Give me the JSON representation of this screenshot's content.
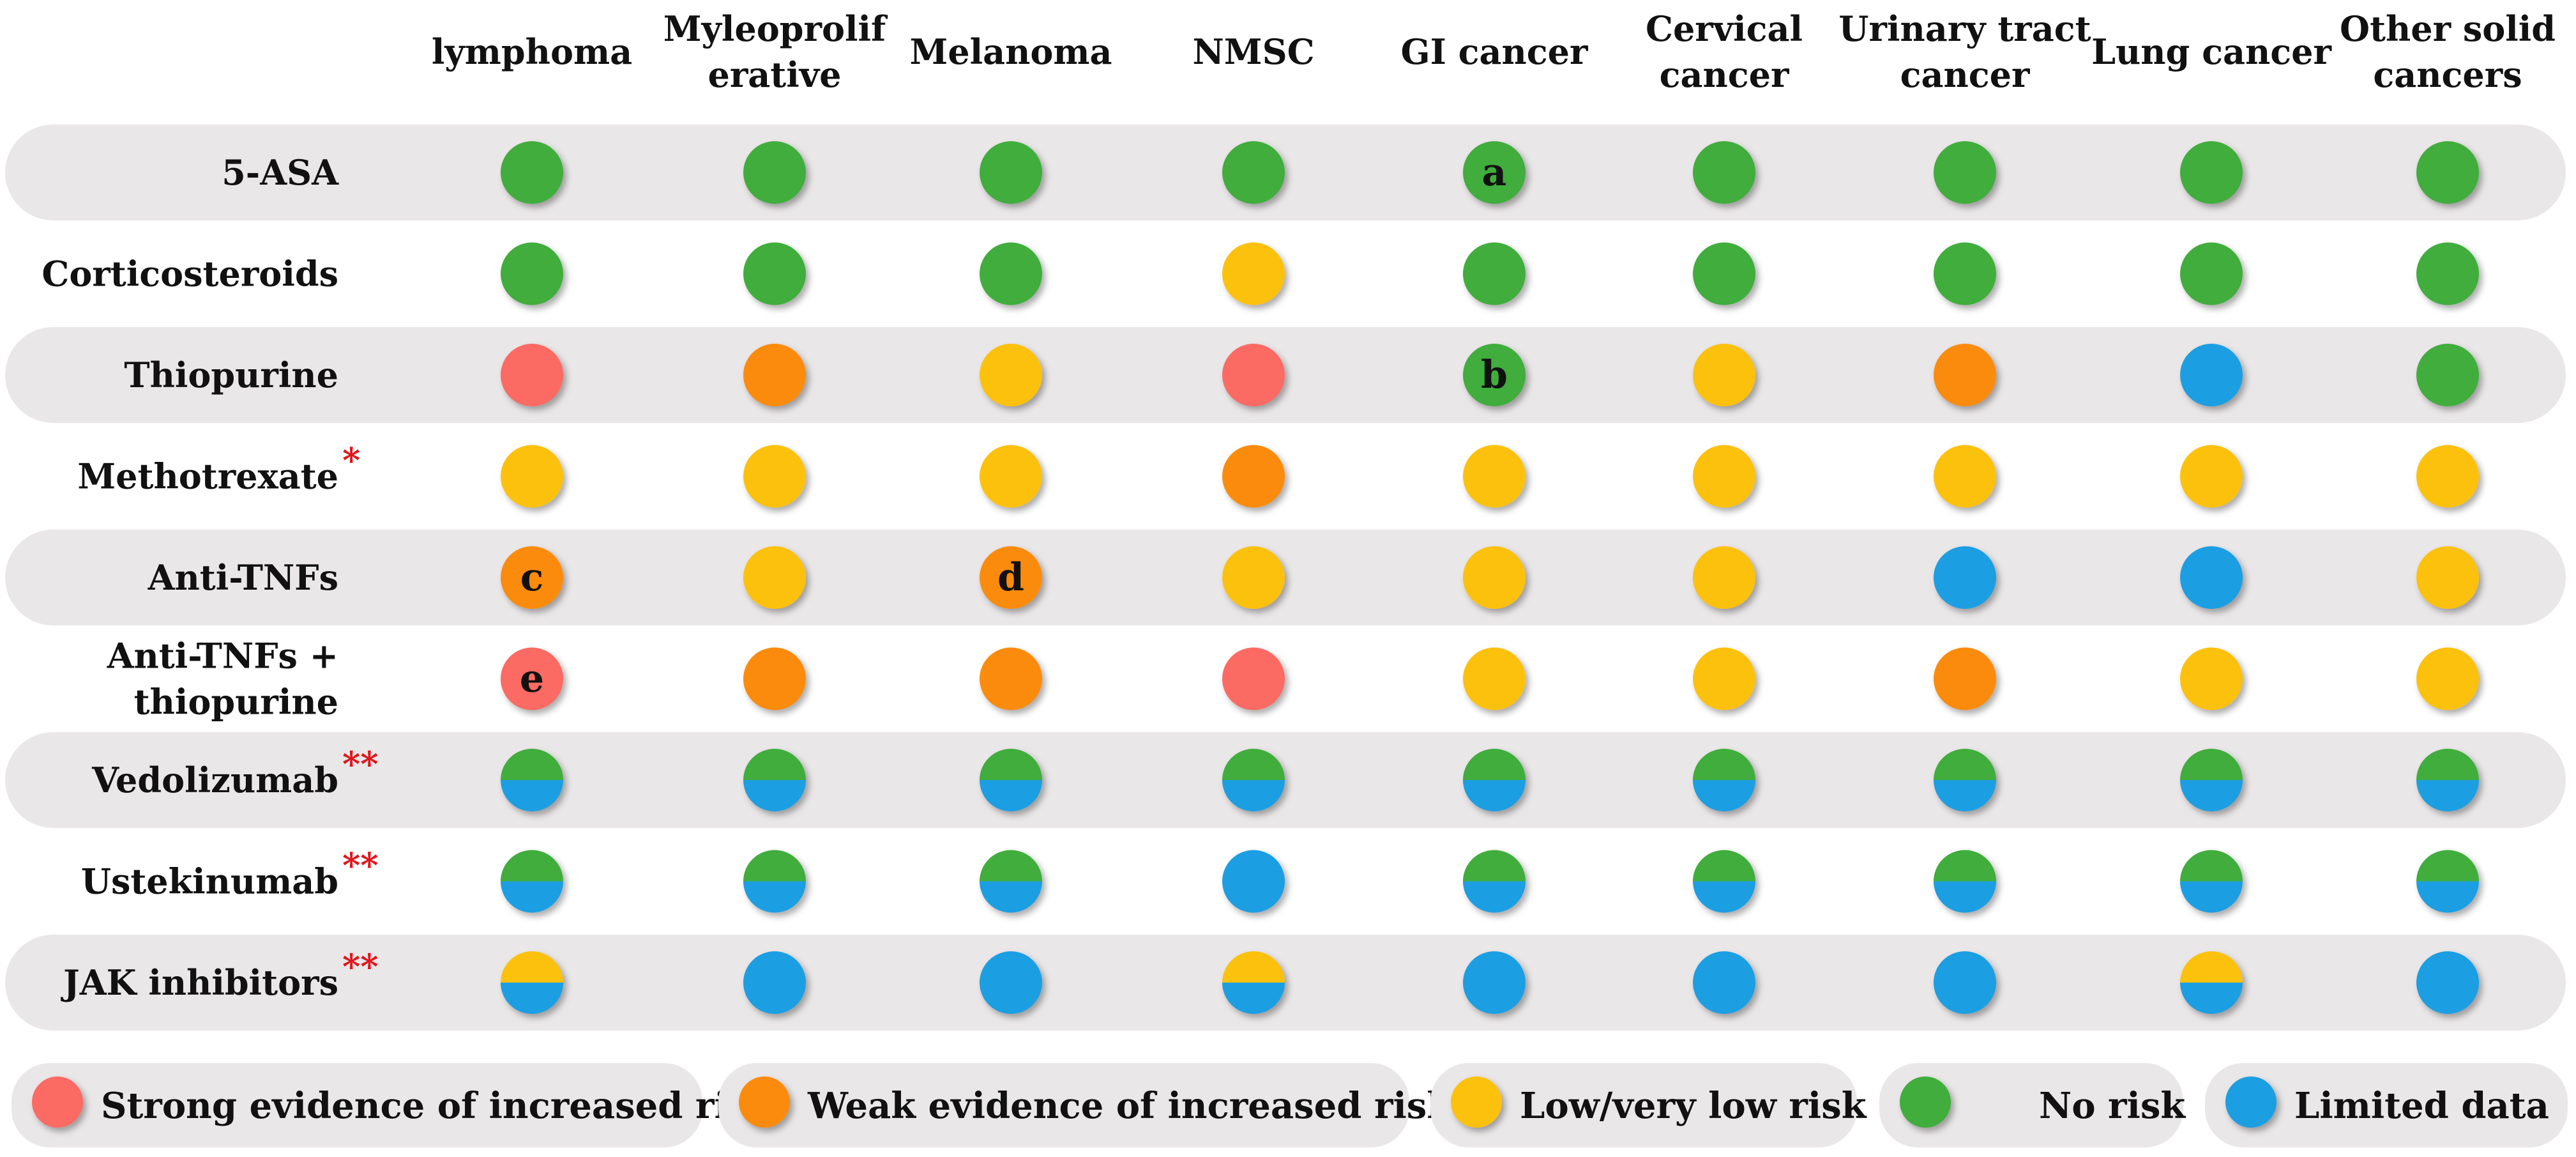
{
  "chart_data": {
    "type": "table",
    "title": "",
    "columns": [
      [
        "lymphoma"
      ],
      [
        "Myleoprolif",
        "erative"
      ],
      [
        "Melanoma"
      ],
      [
        "NMSC"
      ],
      [
        "GI cancer"
      ],
      [
        "Cervical",
        "cancer"
      ],
      [
        "Urinary tract",
        "cancer"
      ],
      [
        "Lung cancer"
      ],
      [
        "Other solid",
        "cancers"
      ]
    ],
    "rows": [
      {
        "label": [
          "5-ASA"
        ],
        "stars": "",
        "shaded": true,
        "cells": [
          "none",
          "none",
          "none",
          "none",
          "none",
          "none",
          "none",
          "none",
          "none"
        ],
        "notes": {
          "4": "a"
        }
      },
      {
        "label": [
          "Corticosteroids"
        ],
        "stars": "",
        "shaded": false,
        "cells": [
          "none",
          "none",
          "none",
          "low",
          "none",
          "none",
          "none",
          "none",
          "none"
        ],
        "notes": {}
      },
      {
        "label": [
          "Thiopurine"
        ],
        "stars": "",
        "shaded": true,
        "cells": [
          "strong",
          "weak",
          "low",
          "strong",
          "none",
          "low",
          "weak",
          "limited",
          "none"
        ],
        "notes": {
          "4": "b"
        }
      },
      {
        "label": [
          "Methotrexate"
        ],
        "stars": "*",
        "shaded": false,
        "cells": [
          "low",
          "low",
          "low",
          "weak",
          "low",
          "low",
          "low",
          "low",
          "low"
        ],
        "notes": {}
      },
      {
        "label": [
          "Anti-TNFs"
        ],
        "stars": "",
        "shaded": true,
        "cells": [
          "weak",
          "low",
          "weak",
          "low",
          "low",
          "low",
          "limited",
          "limited",
          "low"
        ],
        "notes": {
          "0": "c",
          "2": "d"
        }
      },
      {
        "label": [
          "Anti-TNFs +",
          "thiopurine"
        ],
        "stars": "",
        "shaded": false,
        "cells": [
          "strong",
          "weak",
          "weak",
          "strong",
          "low",
          "low",
          "weak",
          "low",
          "low"
        ],
        "notes": {
          "0": "e"
        }
      },
      {
        "label": [
          "Vedolizumab"
        ],
        "stars": "**",
        "shaded": true,
        "cells": [
          "none/limited",
          "none/limited",
          "none/limited",
          "none/limited",
          "none/limited",
          "none/limited",
          "none/limited",
          "none/limited",
          "none/limited"
        ],
        "notes": {}
      },
      {
        "label": [
          "Ustekinumab"
        ],
        "stars": "**",
        "shaded": false,
        "cells": [
          "none/limited",
          "none/limited",
          "none/limited",
          "limited",
          "none/limited",
          "none/limited",
          "none/limited",
          "none/limited",
          "none/limited"
        ],
        "notes": {}
      },
      {
        "label": [
          "JAK inhibitors"
        ],
        "stars": "**",
        "shaded": true,
        "cells": [
          "low/limited",
          "limited",
          "limited",
          "low/limited",
          "limited",
          "limited",
          "limited",
          "low/limited",
          "limited"
        ],
        "notes": {}
      }
    ],
    "categories": {
      "strong": {
        "label": "Strong evidence of increased risk",
        "color": "#fb6b63"
      },
      "weak": {
        "label": "Weak evidence of increased risk",
        "color": "#fb8b0c"
      },
      "low": {
        "label": "Low/very low risk",
        "color": "#fcc10f"
      },
      "none": {
        "label": "No risk",
        "color": "#3fad3c"
      },
      "limited": {
        "label": "Limited data",
        "color": "#1a9ee2"
      }
    },
    "legend": [
      "strong",
      "weak",
      "low",
      "none",
      "limited"
    ],
    "legend_position": "bottom"
  }
}
